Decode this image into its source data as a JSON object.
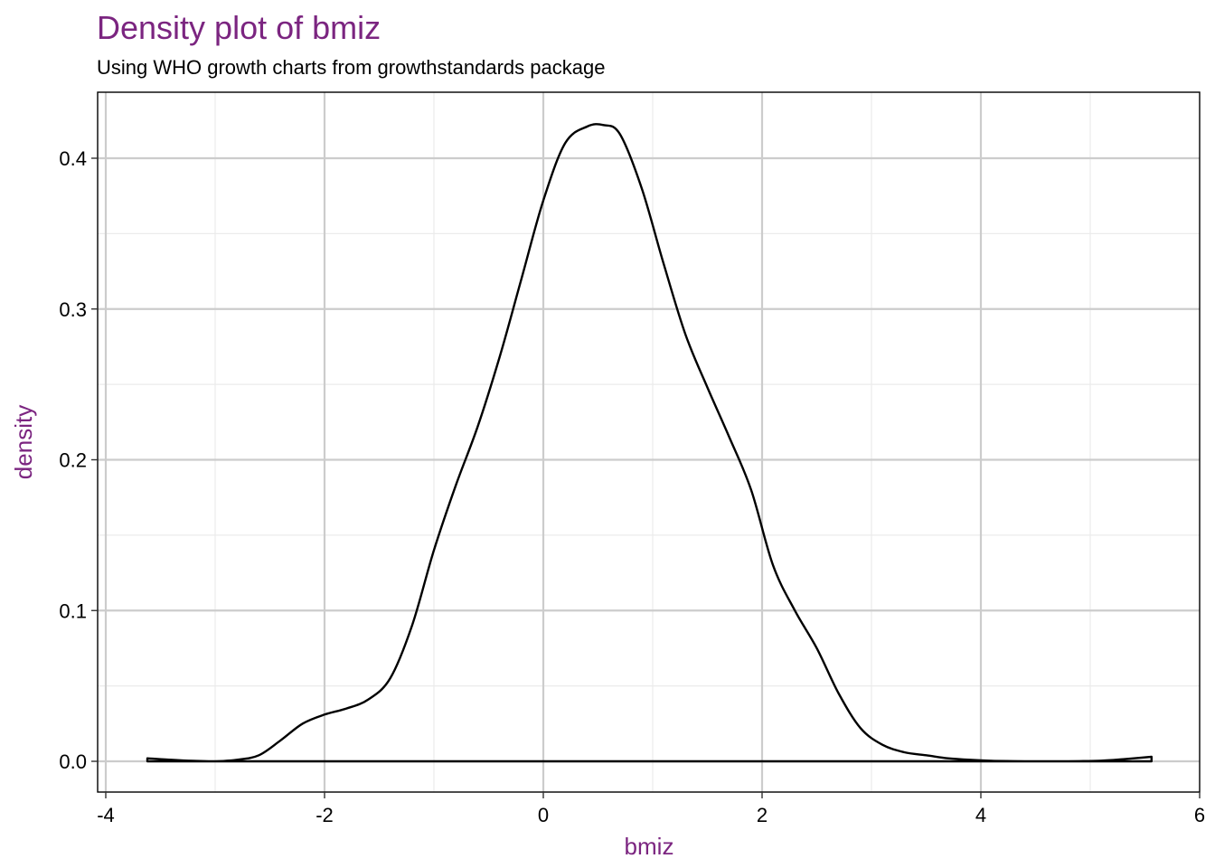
{
  "title": "Density plot of bmiz",
  "subtitle": "Using WHO growth charts from growthstandards package",
  "colors": {
    "accent": "#7B2580",
    "line": "#000000",
    "grid_major": "#CCCCCC",
    "grid_minor": "#EBEBEB"
  },
  "chart_data": {
    "type": "area",
    "title": "Density plot of bmiz",
    "subtitle": "Using WHO growth charts from growthstandards package",
    "xlabel": "bmiz",
    "ylabel": "density",
    "xlim": [
      -4,
      6
    ],
    "ylim": [
      0,
      0.44
    ],
    "x_ticks": [
      -4,
      -2,
      0,
      2,
      4,
      6
    ],
    "x_tick_labels": [
      "-4",
      "-2",
      "0",
      "2",
      "4",
      "6"
    ],
    "y_ticks": [
      0.0,
      0.1,
      0.2,
      0.3,
      0.4
    ],
    "y_tick_labels": [
      "0.0",
      "0.1",
      "0.2",
      "0.3",
      "0.4"
    ],
    "grid": true,
    "fill": "none",
    "series": [
      {
        "x": [
          -3.62,
          -3.4,
          -3.2,
          -3.0,
          -2.8,
          -2.6,
          -2.4,
          -2.2,
          -2.0,
          -1.8,
          -1.6,
          -1.4,
          -1.2,
          -1.0,
          -0.8,
          -0.6,
          -0.4,
          -0.2,
          0.0,
          0.2,
          0.4,
          0.55,
          0.7,
          0.9,
          1.1,
          1.3,
          1.5,
          1.7,
          1.9,
          2.1,
          2.3,
          2.5,
          2.7,
          2.9,
          3.1,
          3.3,
          3.5,
          3.7,
          3.9,
          4.1,
          4.3,
          4.5,
          4.7,
          4.9,
          5.1,
          5.3,
          5.56
        ],
        "y": [
          0.002,
          0.001,
          0.0003,
          0.0,
          0.001,
          0.004,
          0.014,
          0.025,
          0.031,
          0.035,
          0.041,
          0.055,
          0.09,
          0.14,
          0.183,
          0.222,
          0.268,
          0.32,
          0.372,
          0.41,
          0.421,
          0.422,
          0.416,
          0.38,
          0.33,
          0.283,
          0.248,
          0.215,
          0.18,
          0.13,
          0.1,
          0.075,
          0.045,
          0.022,
          0.011,
          0.006,
          0.004,
          0.002,
          0.001,
          0.0003,
          0.0001,
          0.0,
          0.0,
          0.0001,
          0.0004,
          0.0014,
          0.003
        ]
      }
    ]
  }
}
